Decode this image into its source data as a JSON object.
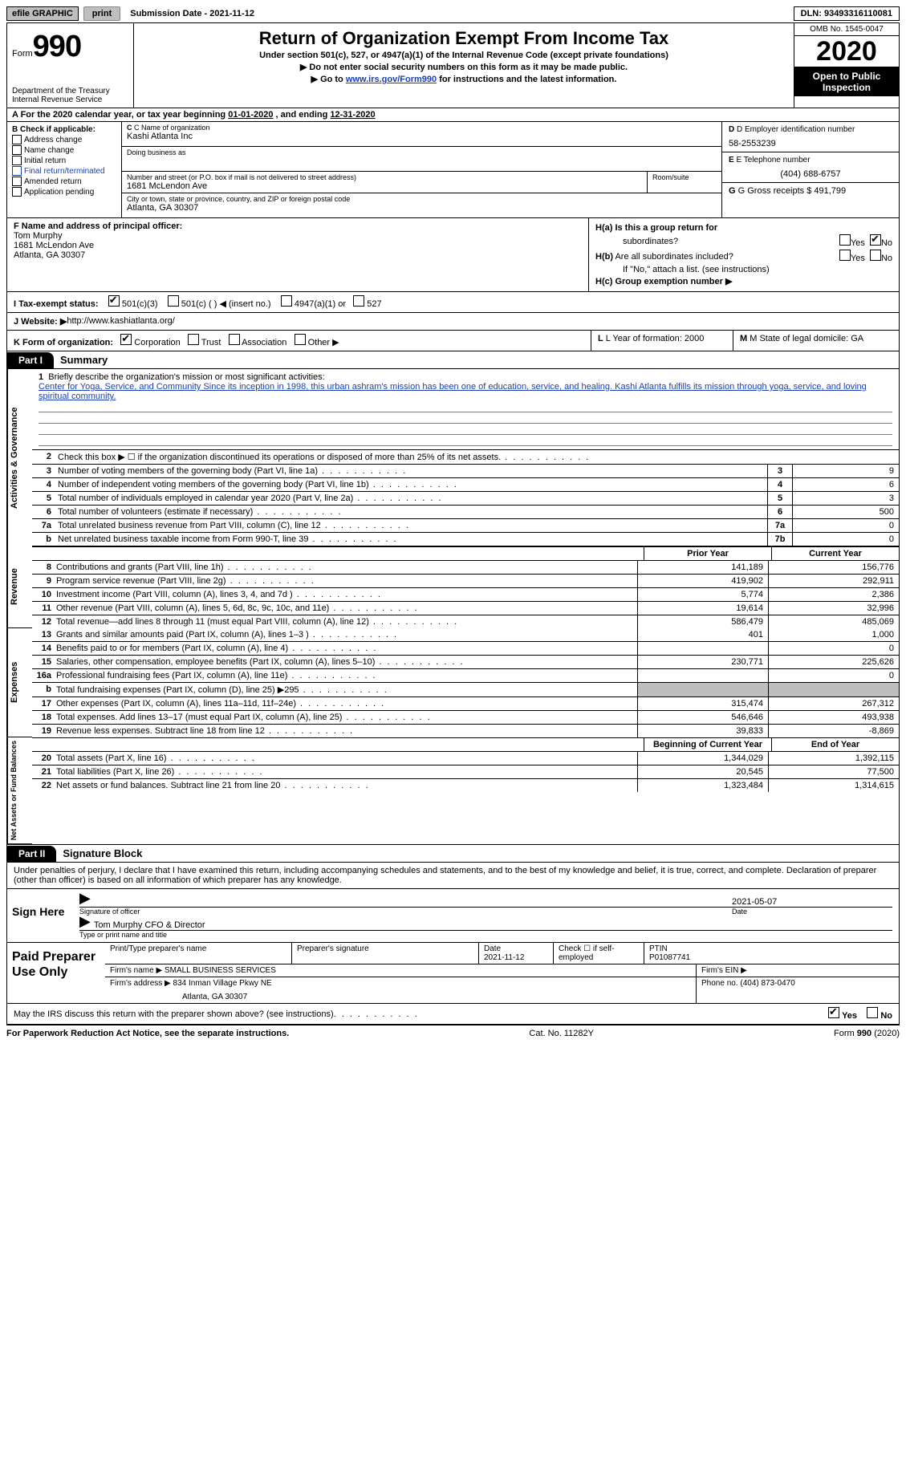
{
  "topbar": {
    "efile": "efile GRAPHIC",
    "print": "print",
    "subdate_label": "Submission Date - ",
    "subdate": "2021-11-12",
    "dln_label": "DLN: ",
    "dln": "93493316110081"
  },
  "header": {
    "form_word": "Form",
    "form_no": "990",
    "dept": "Department of the Treasury\nInternal Revenue Service",
    "title": "Return of Organization Exempt From Income Tax",
    "subtitle": "Under section 501(c), 527, or 4947(a)(1) of the Internal Revenue Code (except private foundations)",
    "note1": "▶ Do not enter social security numbers on this form as it may be made public.",
    "note2_pre": "▶ Go to ",
    "note2_link": "www.irs.gov/Form990",
    "note2_post": " for instructions and the latest information.",
    "omb": "OMB No. 1545-0047",
    "year": "2020",
    "open": "Open to Public Inspection"
  },
  "period": {
    "text_a": "A For the 2020 calendar year, or tax year beginning ",
    "begin": "01-01-2020",
    "mid": " , and ending ",
    "end": "12-31-2020"
  },
  "box_b": {
    "label": "B Check if applicable:",
    "items": [
      "Address change",
      "Name change",
      "Initial return",
      "Final return/terminated",
      "Amended return",
      "Application pending"
    ]
  },
  "box_c": {
    "name_label": "C Name of organization",
    "name": "Kashi Atlanta Inc",
    "dba_label": "Doing business as",
    "dba": "",
    "addr_label": "Number and street (or P.O. box if mail is not delivered to street address)",
    "room_label": "Room/suite",
    "addr": "1681 McLendon Ave",
    "city_label": "City or town, state or province, country, and ZIP or foreign postal code",
    "city": "Atlanta, GA  30307"
  },
  "box_d": {
    "label": "D Employer identification number",
    "ein": "58-2553239",
    "tel_label": "E Telephone number",
    "tel": "(404) 688-6757",
    "gross_label": "G Gross receipts $ ",
    "gross": "491,799"
  },
  "box_f": {
    "label": "F  Name and address of principal officer:",
    "name": "Tom Murphy",
    "addr1": "1681 McLendon Ave",
    "addr2": "Atlanta, GA  30307"
  },
  "box_h": {
    "ha_label": "H(a)  Is this a group return for",
    "ha_sub": "subordinates?",
    "hb_label": "H(b)  Are all subordinates included?",
    "hb_note": "If \"No,\" attach a list. (see instructions)",
    "hc_label": "H(c)  Group exemption number ▶",
    "yes": "Yes",
    "no": "No"
  },
  "row_i": {
    "label": "I  Tax-exempt status:",
    "opts": [
      "501(c)(3)",
      "501(c) (  ) ◀ (insert no.)",
      "4947(a)(1) or",
      "527"
    ]
  },
  "row_j": {
    "label": "J  Website: ▶ ",
    "url": "http://www.kashiatlanta.org/"
  },
  "row_k": {
    "label": "K Form of organization:",
    "opts": [
      "Corporation",
      "Trust",
      "Association",
      "Other ▶"
    ],
    "l_label": "L Year of formation: ",
    "l_val": "2000",
    "m_label": "M State of legal domicile: ",
    "m_val": "GA"
  },
  "parts": {
    "p1_tag": "Part I",
    "p1_title": "Summary",
    "p2_tag": "Part II",
    "p2_title": "Signature Block"
  },
  "vlabels": {
    "gov": "Activities & Governance",
    "rev": "Revenue",
    "exp": "Expenses",
    "net": "Net Assets or Fund Balances"
  },
  "mission": {
    "num": "1",
    "label": "Briefly describe the organization's mission or most significant activities:",
    "text": "Center for Yoga, Service, and Community Since its inception in 1998, this urban ashram's mission has been one of education, service, and healing. Kashi Atlanta fulfills its mission through yoga, service, and loving spiritual community."
  },
  "gov_rows": [
    {
      "n": "2",
      "t": "Check this box ▶ ☐ if the organization discontinued its operations or disposed of more than 25% of its net assets.",
      "cell": "",
      "val": ""
    },
    {
      "n": "3",
      "t": "Number of voting members of the governing body (Part VI, line 1a)",
      "cell": "3",
      "val": "9"
    },
    {
      "n": "4",
      "t": "Number of independent voting members of the governing body (Part VI, line 1b)",
      "cell": "4",
      "val": "6"
    },
    {
      "n": "5",
      "t": "Total number of individuals employed in calendar year 2020 (Part V, line 2a)",
      "cell": "5",
      "val": "3"
    },
    {
      "n": "6",
      "t": "Total number of volunteers (estimate if necessary)",
      "cell": "6",
      "val": "500"
    },
    {
      "n": "7a",
      "t": "Total unrelated business revenue from Part VIII, column (C), line 12",
      "cell": "7a",
      "val": "0"
    },
    {
      "n": "b",
      "t": "Net unrelated business taxable income from Form 990-T, line 39",
      "cell": "7b",
      "val": "0"
    }
  ],
  "col_hdrs": {
    "prior": "Prior Year",
    "current": "Current Year",
    "begin": "Beginning of Current Year",
    "end": "End of Year"
  },
  "rev_rows": [
    {
      "n": "8",
      "t": "Contributions and grants (Part VIII, line 1h)",
      "c1": "141,189",
      "c2": "156,776"
    },
    {
      "n": "9",
      "t": "Program service revenue (Part VIII, line 2g)",
      "c1": "419,902",
      "c2": "292,911"
    },
    {
      "n": "10",
      "t": "Investment income (Part VIII, column (A), lines 3, 4, and 7d )",
      "c1": "5,774",
      "c2": "2,386"
    },
    {
      "n": "11",
      "t": "Other revenue (Part VIII, column (A), lines 5, 6d, 8c, 9c, 10c, and 11e)",
      "c1": "19,614",
      "c2": "32,996"
    },
    {
      "n": "12",
      "t": "Total revenue—add lines 8 through 11 (must equal Part VIII, column (A), line 12)",
      "c1": "586,479",
      "c2": "485,069"
    }
  ],
  "exp_rows": [
    {
      "n": "13",
      "t": "Grants and similar amounts paid (Part IX, column (A), lines 1–3 )",
      "c1": "401",
      "c2": "1,000"
    },
    {
      "n": "14",
      "t": "Benefits paid to or for members (Part IX, column (A), line 4)",
      "c1": "",
      "c2": "0"
    },
    {
      "n": "15",
      "t": "Salaries, other compensation, employee benefits (Part IX, column (A), lines 5–10)",
      "c1": "230,771",
      "c2": "225,626"
    },
    {
      "n": "16a",
      "t": "Professional fundraising fees (Part IX, column (A), line 11e)",
      "c1": "",
      "c2": "0"
    },
    {
      "n": "b",
      "t": "Total fundraising expenses (Part IX, column (D), line 25) ▶295",
      "c1g": true,
      "c2g": true,
      "c1": "",
      "c2": ""
    },
    {
      "n": "17",
      "t": "Other expenses (Part IX, column (A), lines 11a–11d, 11f–24e)",
      "c1": "315,474",
      "c2": "267,312"
    },
    {
      "n": "18",
      "t": "Total expenses. Add lines 13–17 (must equal Part IX, column (A), line 25)",
      "c1": "546,646",
      "c2": "493,938"
    },
    {
      "n": "19",
      "t": "Revenue less expenses. Subtract line 18 from line 12",
      "c1": "39,833",
      "c2": "-8,869"
    }
  ],
  "net_rows": [
    {
      "n": "20",
      "t": "Total assets (Part X, line 16)",
      "c1": "1,344,029",
      "c2": "1,392,115"
    },
    {
      "n": "21",
      "t": "Total liabilities (Part X, line 26)",
      "c1": "20,545",
      "c2": "77,500"
    },
    {
      "n": "22",
      "t": "Net assets or fund balances. Subtract line 21 from line 20",
      "c1": "1,323,484",
      "c2": "1,314,615"
    }
  ],
  "sig": {
    "text": "Under penalties of perjury, I declare that I have examined this return, including accompanying schedules and statements, and to the best of my knowledge and belief, it is true, correct, and complete. Declaration of preparer (other than officer) is based on all information of which preparer has any knowledge.",
    "sign_here": "Sign Here",
    "sig_label": "Signature of officer",
    "date_label": "Date",
    "date_val": "2021-05-07",
    "name": "Tom Murphy CFO & Director",
    "name_label": "Type or print name and title"
  },
  "prep": {
    "title": "Paid Preparer Use Only",
    "r1": {
      "c1_label": "Print/Type preparer's name",
      "c2_label": "Preparer's signature",
      "c3_label": "Date",
      "c3_val": "2021-11-12",
      "c4_label": "Check ☐ if self-employed",
      "c5_label": "PTIN",
      "c5_val": "P01087741"
    },
    "r2": {
      "c1_label": "Firm's name   ▶ ",
      "c1_val": "SMALL BUSINESS SERVICES",
      "c2_label": "Firm's EIN ▶"
    },
    "r3": {
      "c1_label": "Firm's address ▶ ",
      "c1_val": "834 Inman Village Pkwy NE",
      "c1_val2": "Atlanta, GA  30307",
      "c2_label": "Phone no. ",
      "c2_val": "(404) 873-0470"
    }
  },
  "may": {
    "text": "May the IRS discuss this return with the preparer shown above? (see instructions)",
    "yes": "Yes",
    "no": "No"
  },
  "footer": {
    "l": "For Paperwork Reduction Act Notice, see the separate instructions.",
    "m": "Cat. No. 11282Y",
    "r": "Form 990 (2020)"
  }
}
